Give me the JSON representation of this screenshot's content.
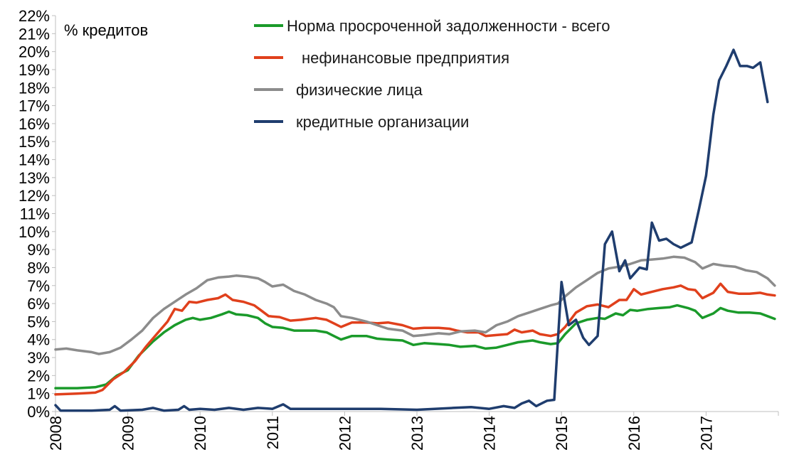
{
  "chart_data": {
    "type": "line",
    "unit_label": "% кредитов",
    "ylim": [
      0,
      22
    ],
    "y_ticks": [
      "0%",
      "1%",
      "2%",
      "3%",
      "4%",
      "5%",
      "6%",
      "7%",
      "8%",
      "9%",
      "10%",
      "11%",
      "12%",
      "13%",
      "14%",
      "15%",
      "16%",
      "17%",
      "18%",
      "19%",
      "20%",
      "21%",
      "22%"
    ],
    "x_ticks": [
      "2008",
      "2009",
      "2010",
      "2011",
      "2012",
      "2013",
      "2014",
      "2015",
      "2016",
      "2017"
    ],
    "xlim": [
      2008.0,
      2018.0
    ],
    "grid": false,
    "legend_position": "top-center",
    "series": [
      {
        "name": "Норма просроченной задолженности - всего",
        "color": "#1a9a2a",
        "points": [
          [
            2008.0,
            1.3
          ],
          [
            2008.3,
            1.3
          ],
          [
            2008.55,
            1.35
          ],
          [
            2008.7,
            1.5
          ],
          [
            2008.85,
            2.0
          ],
          [
            2009.0,
            2.3
          ],
          [
            2009.15,
            3.1
          ],
          [
            2009.35,
            3.9
          ],
          [
            2009.5,
            4.4
          ],
          [
            2009.65,
            4.8
          ],
          [
            2009.8,
            5.1
          ],
          [
            2009.9,
            5.2
          ],
          [
            2010.0,
            5.1
          ],
          [
            2010.15,
            5.2
          ],
          [
            2010.3,
            5.4
          ],
          [
            2010.4,
            5.55
          ],
          [
            2010.5,
            5.4
          ],
          [
            2010.65,
            5.35
          ],
          [
            2010.8,
            5.2
          ],
          [
            2010.9,
            4.9
          ],
          [
            2011.0,
            4.7
          ],
          [
            2011.15,
            4.65
          ],
          [
            2011.3,
            4.5
          ],
          [
            2011.45,
            4.5
          ],
          [
            2011.6,
            4.5
          ],
          [
            2011.75,
            4.4
          ],
          [
            2011.85,
            4.2
          ],
          [
            2011.95,
            4.0
          ],
          [
            2012.1,
            4.2
          ],
          [
            2012.3,
            4.2
          ],
          [
            2012.45,
            4.05
          ],
          [
            2012.6,
            4.0
          ],
          [
            2012.8,
            3.95
          ],
          [
            2012.95,
            3.7
          ],
          [
            2013.1,
            3.8
          ],
          [
            2013.3,
            3.75
          ],
          [
            2013.45,
            3.7
          ],
          [
            2013.6,
            3.6
          ],
          [
            2013.8,
            3.65
          ],
          [
            2013.95,
            3.5
          ],
          [
            2014.1,
            3.55
          ],
          [
            2014.25,
            3.7
          ],
          [
            2014.4,
            3.85
          ],
          [
            2014.5,
            3.9
          ],
          [
            2014.6,
            3.95
          ],
          [
            2014.7,
            3.85
          ],
          [
            2014.85,
            3.75
          ],
          [
            2014.95,
            3.8
          ],
          [
            2015.05,
            4.3
          ],
          [
            2015.2,
            4.9
          ],
          [
            2015.35,
            5.1
          ],
          [
            2015.5,
            5.2
          ],
          [
            2015.6,
            5.15
          ],
          [
            2015.75,
            5.45
          ],
          [
            2015.85,
            5.35
          ],
          [
            2015.95,
            5.65
          ],
          [
            2016.05,
            5.6
          ],
          [
            2016.2,
            5.7
          ],
          [
            2016.35,
            5.75
          ],
          [
            2016.5,
            5.8
          ],
          [
            2016.6,
            5.9
          ],
          [
            2016.75,
            5.75
          ],
          [
            2016.85,
            5.6
          ],
          [
            2016.95,
            5.2
          ],
          [
            2017.1,
            5.45
          ],
          [
            2017.2,
            5.75
          ],
          [
            2017.3,
            5.6
          ],
          [
            2017.45,
            5.5
          ],
          [
            2017.6,
            5.5
          ],
          [
            2017.75,
            5.45
          ],
          [
            2017.85,
            5.3
          ],
          [
            2017.95,
            5.15
          ]
        ]
      },
      {
        "name": "нефинансовые предприятия",
        "color": "#e0401c",
        "points": [
          [
            2008.0,
            0.95
          ],
          [
            2008.3,
            1.0
          ],
          [
            2008.55,
            1.05
          ],
          [
            2008.65,
            1.2
          ],
          [
            2008.8,
            1.8
          ],
          [
            2008.95,
            2.2
          ],
          [
            2009.1,
            2.8
          ],
          [
            2009.25,
            3.6
          ],
          [
            2009.4,
            4.3
          ],
          [
            2009.55,
            5.0
          ],
          [
            2009.65,
            5.7
          ],
          [
            2009.75,
            5.6
          ],
          [
            2009.85,
            6.1
          ],
          [
            2009.95,
            6.05
          ],
          [
            2010.1,
            6.2
          ],
          [
            2010.25,
            6.3
          ],
          [
            2010.35,
            6.5
          ],
          [
            2010.45,
            6.2
          ],
          [
            2010.6,
            6.1
          ],
          [
            2010.75,
            5.9
          ],
          [
            2010.85,
            5.6
          ],
          [
            2010.95,
            5.3
          ],
          [
            2011.1,
            5.25
          ],
          [
            2011.25,
            5.05
          ],
          [
            2011.4,
            5.1
          ],
          [
            2011.6,
            5.2
          ],
          [
            2011.75,
            5.1
          ],
          [
            2011.85,
            4.9
          ],
          [
            2011.95,
            4.7
          ],
          [
            2012.1,
            4.95
          ],
          [
            2012.3,
            4.95
          ],
          [
            2012.45,
            4.9
          ],
          [
            2012.6,
            4.95
          ],
          [
            2012.8,
            4.8
          ],
          [
            2012.95,
            4.6
          ],
          [
            2013.1,
            4.65
          ],
          [
            2013.3,
            4.65
          ],
          [
            2013.45,
            4.6
          ],
          [
            2013.55,
            4.5
          ],
          [
            2013.7,
            4.4
          ],
          [
            2013.85,
            4.4
          ],
          [
            2013.95,
            4.2
          ],
          [
            2014.1,
            4.25
          ],
          [
            2014.25,
            4.3
          ],
          [
            2014.35,
            4.55
          ],
          [
            2014.45,
            4.4
          ],
          [
            2014.6,
            4.5
          ],
          [
            2014.7,
            4.3
          ],
          [
            2014.85,
            4.2
          ],
          [
            2014.95,
            4.3
          ],
          [
            2015.05,
            4.7
          ],
          [
            2015.2,
            5.5
          ],
          [
            2015.35,
            5.85
          ],
          [
            2015.5,
            5.95
          ],
          [
            2015.65,
            5.8
          ],
          [
            2015.8,
            6.2
          ],
          [
            2015.9,
            6.2
          ],
          [
            2016.0,
            6.8
          ],
          [
            2016.1,
            6.5
          ],
          [
            2016.25,
            6.65
          ],
          [
            2016.4,
            6.8
          ],
          [
            2016.55,
            6.9
          ],
          [
            2016.65,
            7.0
          ],
          [
            2016.75,
            6.8
          ],
          [
            2016.85,
            6.75
          ],
          [
            2016.95,
            6.3
          ],
          [
            2017.1,
            6.6
          ],
          [
            2017.2,
            7.1
          ],
          [
            2017.3,
            6.65
          ],
          [
            2017.45,
            6.55
          ],
          [
            2017.6,
            6.55
          ],
          [
            2017.75,
            6.6
          ],
          [
            2017.85,
            6.5
          ],
          [
            2017.95,
            6.45
          ]
        ]
      },
      {
        "name": "физические лица",
        "color": "#8c8c8c",
        "points": [
          [
            2008.0,
            3.45
          ],
          [
            2008.15,
            3.5
          ],
          [
            2008.3,
            3.4
          ],
          [
            2008.5,
            3.3
          ],
          [
            2008.6,
            3.2
          ],
          [
            2008.75,
            3.3
          ],
          [
            2008.9,
            3.55
          ],
          [
            2009.05,
            4.0
          ],
          [
            2009.2,
            4.5
          ],
          [
            2009.35,
            5.2
          ],
          [
            2009.5,
            5.7
          ],
          [
            2009.65,
            6.1
          ],
          [
            2009.8,
            6.5
          ],
          [
            2009.95,
            6.85
          ],
          [
            2010.1,
            7.3
          ],
          [
            2010.25,
            7.45
          ],
          [
            2010.4,
            7.5
          ],
          [
            2010.5,
            7.55
          ],
          [
            2010.65,
            7.5
          ],
          [
            2010.8,
            7.4
          ],
          [
            2010.9,
            7.2
          ],
          [
            2011.0,
            6.95
          ],
          [
            2011.15,
            7.05
          ],
          [
            2011.3,
            6.7
          ],
          [
            2011.45,
            6.5
          ],
          [
            2011.6,
            6.2
          ],
          [
            2011.75,
            6.0
          ],
          [
            2011.85,
            5.8
          ],
          [
            2011.95,
            5.3
          ],
          [
            2012.1,
            5.2
          ],
          [
            2012.3,
            5.0
          ],
          [
            2012.45,
            4.8
          ],
          [
            2012.6,
            4.6
          ],
          [
            2012.8,
            4.5
          ],
          [
            2012.95,
            4.2
          ],
          [
            2013.1,
            4.25
          ],
          [
            2013.3,
            4.35
          ],
          [
            2013.45,
            4.3
          ],
          [
            2013.6,
            4.45
          ],
          [
            2013.8,
            4.5
          ],
          [
            2013.95,
            4.4
          ],
          [
            2014.1,
            4.8
          ],
          [
            2014.25,
            5.0
          ],
          [
            2014.4,
            5.3
          ],
          [
            2014.55,
            5.5
          ],
          [
            2014.7,
            5.7
          ],
          [
            2014.85,
            5.9
          ],
          [
            2014.95,
            6.0
          ],
          [
            2015.05,
            6.4
          ],
          [
            2015.2,
            6.9
          ],
          [
            2015.35,
            7.3
          ],
          [
            2015.5,
            7.7
          ],
          [
            2015.65,
            7.95
          ],
          [
            2015.8,
            8.05
          ],
          [
            2015.95,
            8.2
          ],
          [
            2016.1,
            8.4
          ],
          [
            2016.25,
            8.45
          ],
          [
            2016.4,
            8.5
          ],
          [
            2016.55,
            8.6
          ],
          [
            2016.7,
            8.55
          ],
          [
            2016.85,
            8.3
          ],
          [
            2016.95,
            7.95
          ],
          [
            2017.1,
            8.2
          ],
          [
            2017.25,
            8.1
          ],
          [
            2017.4,
            8.05
          ],
          [
            2017.55,
            7.85
          ],
          [
            2017.7,
            7.75
          ],
          [
            2017.85,
            7.4
          ],
          [
            2017.95,
            7.0
          ]
        ]
      },
      {
        "name": "кредитные организации",
        "color": "#1f3d6e",
        "points": [
          [
            2008.0,
            0.35
          ],
          [
            2008.07,
            0.05
          ],
          [
            2008.2,
            0.05
          ],
          [
            2008.5,
            0.05
          ],
          [
            2008.75,
            0.1
          ],
          [
            2008.82,
            0.3
          ],
          [
            2008.9,
            0.05
          ],
          [
            2009.2,
            0.1
          ],
          [
            2009.35,
            0.2
          ],
          [
            2009.5,
            0.05
          ],
          [
            2009.7,
            0.1
          ],
          [
            2009.78,
            0.3
          ],
          [
            2009.85,
            0.1
          ],
          [
            2010.0,
            0.15
          ],
          [
            2010.2,
            0.1
          ],
          [
            2010.4,
            0.2
          ],
          [
            2010.6,
            0.1
          ],
          [
            2010.8,
            0.2
          ],
          [
            2011.0,
            0.15
          ],
          [
            2011.15,
            0.4
          ],
          [
            2011.25,
            0.15
          ],
          [
            2011.6,
            0.15
          ],
          [
            2012.0,
            0.15
          ],
          [
            2012.5,
            0.15
          ],
          [
            2013.0,
            0.1
          ],
          [
            2013.5,
            0.2
          ],
          [
            2013.75,
            0.25
          ],
          [
            2014.0,
            0.15
          ],
          [
            2014.2,
            0.3
          ],
          [
            2014.35,
            0.2
          ],
          [
            2014.45,
            0.45
          ],
          [
            2014.55,
            0.6
          ],
          [
            2014.65,
            0.3
          ],
          [
            2014.8,
            0.6
          ],
          [
            2014.9,
            0.65
          ],
          [
            2015.0,
            7.2
          ],
          [
            2015.1,
            4.8
          ],
          [
            2015.2,
            5.1
          ],
          [
            2015.3,
            4.1
          ],
          [
            2015.38,
            3.7
          ],
          [
            2015.5,
            4.2
          ],
          [
            2015.6,
            9.3
          ],
          [
            2015.7,
            10.0
          ],
          [
            2015.8,
            7.8
          ],
          [
            2015.88,
            8.4
          ],
          [
            2015.95,
            7.4
          ],
          [
            2016.08,
            8.0
          ],
          [
            2016.18,
            7.9
          ],
          [
            2016.25,
            10.5
          ],
          [
            2016.35,
            9.5
          ],
          [
            2016.45,
            9.6
          ],
          [
            2016.55,
            9.3
          ],
          [
            2016.65,
            9.1
          ],
          [
            2016.8,
            9.4
          ],
          [
            2016.9,
            11.2
          ],
          [
            2017.0,
            13.1
          ],
          [
            2017.1,
            16.5
          ],
          [
            2017.18,
            18.4
          ],
          [
            2017.28,
            19.2
          ],
          [
            2017.38,
            20.1
          ],
          [
            2017.47,
            19.2
          ],
          [
            2017.57,
            19.2
          ],
          [
            2017.65,
            19.1
          ],
          [
            2017.75,
            19.4
          ],
          [
            2017.85,
            17.2
          ]
        ]
      }
    ]
  }
}
